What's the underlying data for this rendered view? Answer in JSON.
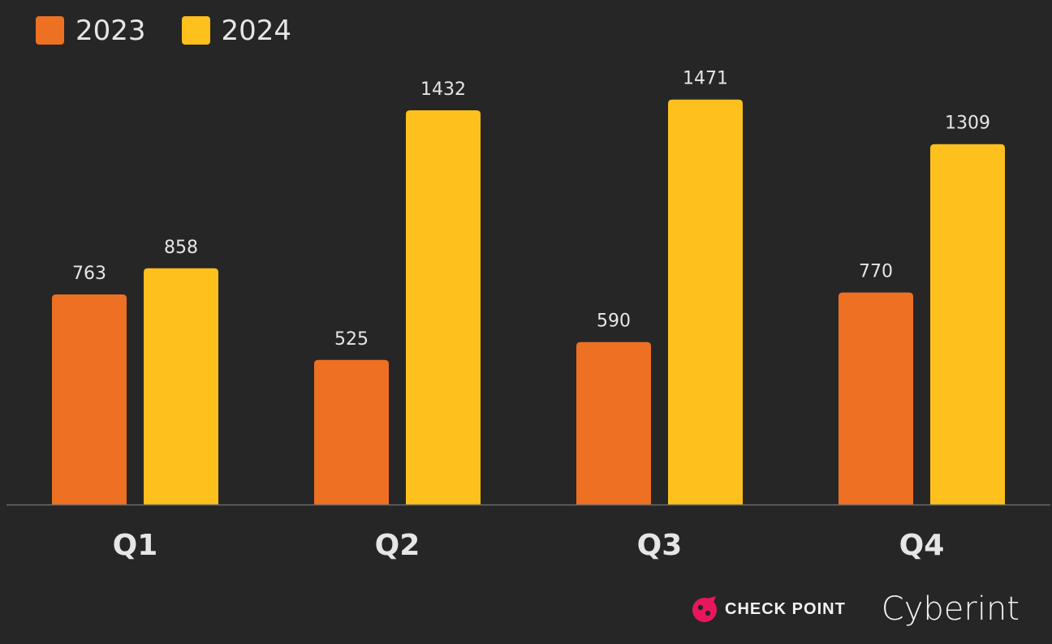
{
  "chart_data": {
    "type": "bar",
    "categories": [
      "Q1",
      "Q2",
      "Q3",
      "Q4"
    ],
    "series": [
      {
        "name": "2023",
        "values": [
          763,
          525,
          590,
          770
        ],
        "color": "#ee7023"
      },
      {
        "name": "2024",
        "values": [
          858,
          1432,
          1471,
          1309
        ],
        "color": "#fdc01d"
      }
    ],
    "title": "",
    "xlabel": "",
    "ylabel": "",
    "ylim": [
      0,
      1700
    ],
    "grid": false,
    "legend_position": "top-left"
  },
  "colors": {
    "background": "#262626",
    "axis": "#6b6b6b",
    "text": "#e6e6e6"
  },
  "logos": {
    "checkpoint": "CHECK POINT",
    "cyberint": "Cyberint"
  }
}
